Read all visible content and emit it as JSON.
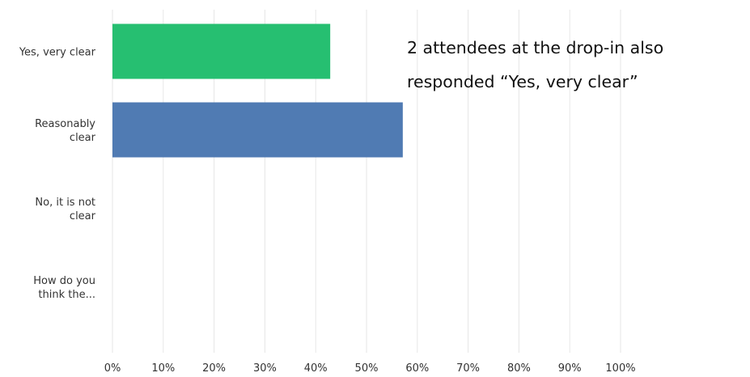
{
  "chart_data": {
    "type": "bar",
    "orientation": "horizontal",
    "categories": [
      [
        "Yes, very clear"
      ],
      [
        "Reasonably",
        "clear"
      ],
      [
        "No, it is not",
        "clear"
      ],
      [
        "How do you",
        "think the..."
      ]
    ],
    "values": [
      42.86,
      57.14,
      0,
      0
    ],
    "bar_colors": [
      "#26bf71",
      "#507bb3",
      "#507bb3",
      "#507bb3"
    ],
    "xlim": [
      0,
      100
    ],
    "x_ticks": [
      "0%",
      "10%",
      "20%",
      "30%",
      "40%",
      "50%",
      "60%",
      "70%",
      "80%",
      "90%",
      "100%"
    ],
    "grid": true,
    "gridline_color": "#e6e6e6",
    "title": "",
    "xlabel": "",
    "ylabel": "",
    "annotation": {
      "line1": "2 attendees at the drop-in also",
      "line2": "responded “Yes, very clear”"
    }
  }
}
